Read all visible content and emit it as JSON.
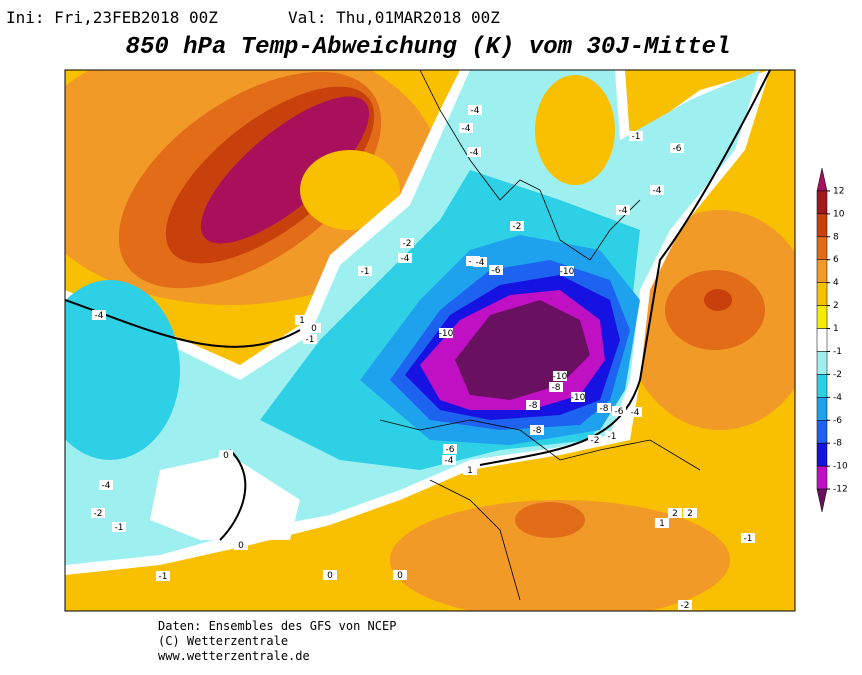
{
  "header": {
    "init": "Ini: Fri,23FEB2018 00Z",
    "valid": "Val: Thu,01MAR2018 00Z"
  },
  "title": "850 hPa Temp-Abweichung (K) vom 30J-Mittel",
  "map": {
    "contour_labels": [
      -4,
      -4,
      -4,
      -1,
      -6,
      -4,
      -4,
      -2,
      -4,
      -1,
      -2,
      -4,
      -4,
      -6,
      -10,
      -10,
      1,
      0,
      -1,
      -10,
      -8,
      -8,
      -8,
      -10,
      -8,
      -6,
      -4,
      -6,
      -4,
      -2,
      -1,
      2,
      0,
      0,
      -4,
      -2,
      -1,
      0,
      -1,
      0,
      1,
      2,
      -1,
      -2,
      1,
      -1
    ]
  },
  "colorbar": {
    "labels": [
      12,
      10,
      8,
      6,
      4,
      2,
      1,
      -1,
      -2,
      -4,
      -6,
      -8,
      -10,
      -12
    ],
    "colors": [
      "#a8105c",
      "#a01820",
      "#c8400c",
      "#e26c18",
      "#f29a28",
      "#f8c000",
      "#f6ec00",
      "#ffffff",
      "#9ef0f0",
      "#2ed0e6",
      "#1ea2ee",
      "#1e62f0",
      "#1612e2",
      "#c010c4",
      "#6a1060"
    ]
  },
  "footer": [
    "Daten: Ensembles des GFS von NCEP",
    "(C) Wetterzentrale",
    "www.wetterzentrale.de"
  ]
}
